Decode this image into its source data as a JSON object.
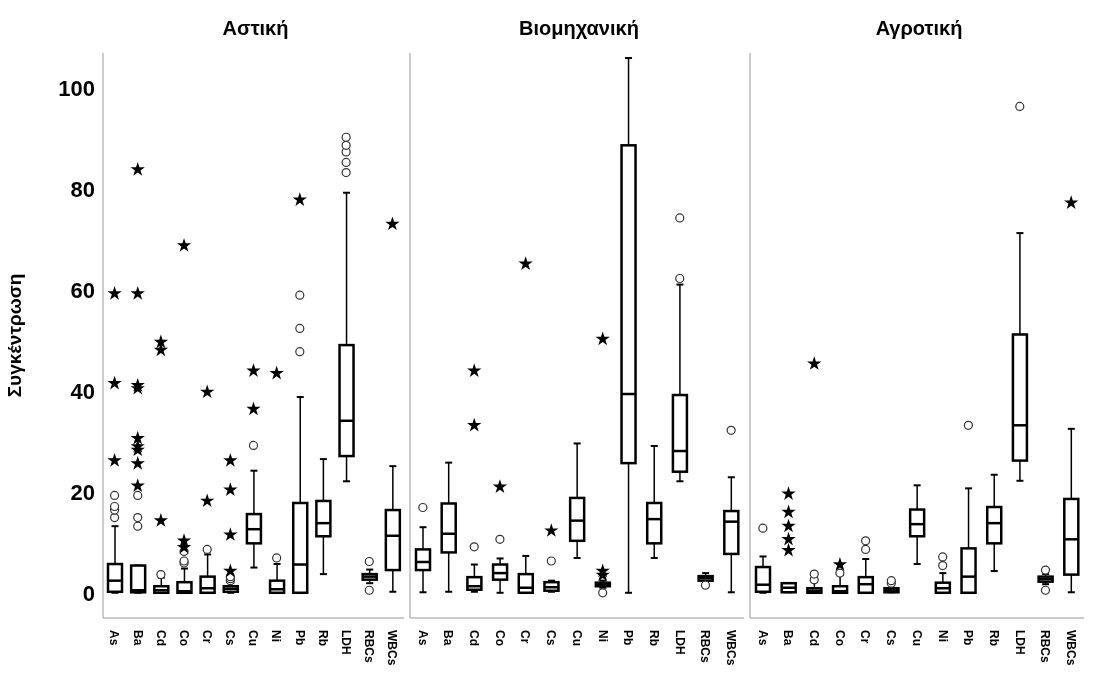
{
  "chart_data": [
    {
      "type": "box",
      "title": "Αστική",
      "ylabel": "Συγκέντρωση",
      "categories": [
        "As",
        "Ba",
        "Cd",
        "Co",
        "Cr",
        "Cs",
        "Cu",
        "Ni",
        "Pb",
        "Rb",
        "LDH",
        "RBCs",
        "WBCs"
      ],
      "ylim": [
        -5,
        107
      ],
      "yticks": [
        0,
        20,
        40,
        60,
        80,
        100
      ],
      "grid": false,
      "legend": false,
      "boxes": [
        {
          "low": 0,
          "q1": 0.2,
          "median": 2.4,
          "q3": 5.7,
          "high": 13.2,
          "outliers": [
            14.9,
            16.4,
            17.1,
            19.3
          ]
        },
        {
          "low": 0,
          "q1": 0.1,
          "median": 0.5,
          "q3": 5.4,
          "high": 5.4,
          "outliers": [
            13.2,
            14.9,
            19.3
          ]
        },
        {
          "low": 0,
          "q1": 0,
          "median": 0.5,
          "q3": 1.3,
          "high": 3.0,
          "outliers": [
            3.6
          ]
        },
        {
          "low": 0,
          "q1": 0,
          "median": 0.3,
          "q3": 2.1,
          "high": 4.8,
          "outliers": [
            5.9,
            6.3,
            8.2
          ]
        },
        {
          "low": 0,
          "q1": 0,
          "median": 0.9,
          "q3": 3.2,
          "high": 7.6,
          "outliers": [
            8.6
          ]
        },
        {
          "low": 0,
          "q1": 0.2,
          "median": 0.8,
          "q3": 1.3,
          "high": 2.0,
          "outliers": [
            2.4,
            2.8,
            3.2
          ]
        },
        {
          "low": 5.0,
          "q1": 9.8,
          "median": 12.6,
          "q3": 15.6,
          "high": 24.2,
          "outliers": [
            29.2
          ]
        },
        {
          "low": 0,
          "q1": 0,
          "median": 0.7,
          "q3": 2.4,
          "high": 5.7,
          "outliers": [
            6.9
          ]
        },
        {
          "low": 0,
          "q1": 0,
          "median": 5.6,
          "q3": 17.8,
          "high": 38.8,
          "outliers": [
            47.8,
            52.4,
            59.0
          ]
        },
        {
          "low": 3.7,
          "q1": 11.2,
          "median": 13.8,
          "q3": 18.2,
          "high": 26.5
        },
        {
          "low": 22.1,
          "q1": 27.1,
          "median": 34.1,
          "q3": 49.1,
          "high": 79.3,
          "outliers": [
            83.3,
            85.3,
            87.4,
            88.7,
            90.3
          ]
        },
        {
          "low": 1.9,
          "q1": 2.6,
          "median": 3.2,
          "q3": 3.7,
          "high": 4.6,
          "outliers": [
            0.5,
            6.2
          ]
        },
        {
          "low": 0.2,
          "q1": 4.5,
          "median": 11.3,
          "q3": 16.4,
          "high": 25.1
        }
      ],
      "series": [
        {
          "type": "scatter",
          "marker": "star",
          "color": "#000000",
          "x": [
            "As",
            "As",
            "As",
            "Ba",
            "Ba",
            "Ba",
            "Ba",
            "Ba",
            "Ba",
            "Ba",
            "Ba",
            "Ba",
            "Cd",
            "Cd",
            "Cd",
            "Co",
            "Co",
            "Co",
            "Cr",
            "Cr",
            "Cs",
            "Cs",
            "Cs",
            "Cs",
            "Cu",
            "Cu",
            "Ni",
            "Pb",
            "WBCs"
          ],
          "values": [
            26.2,
            41.5,
            59.3,
            21.2,
            25.6,
            28.3,
            29.0,
            30.6,
            40.5,
            41.1,
            59.3,
            83.9,
            14.3,
            48.1,
            49.7,
            9.0,
            10.3,
            68.8,
            18.2,
            39.8,
            4.3,
            11.5,
            20.4,
            26.2,
            36.4,
            44.0,
            43.5,
            77.9,
            73.1
          ]
        }
      ]
    },
    {
      "type": "box",
      "title": "Βιομηχανική",
      "categories": [
        "As",
        "Ba",
        "Cd",
        "Co",
        "Cr",
        "Cs",
        "Cu",
        "Ni",
        "Pb",
        "Rb",
        "LDH",
        "RBCs",
        "WBCs"
      ],
      "ylim": [
        -5,
        107
      ],
      "yticks": [
        0,
        20,
        40,
        60,
        80,
        100
      ],
      "tick_labels": "x",
      "grid": false,
      "legend": false,
      "boxes": [
        {
          "low": 0.1,
          "q1": 4.5,
          "median": 6.1,
          "q3": 8.6,
          "high": 13.0,
          "outliers": [
            16.9
          ]
        },
        {
          "low": 0.2,
          "q1": 8.0,
          "median": 11.7,
          "q3": 17.7,
          "high": 25.8
        },
        {
          "low": 0.2,
          "q1": 0.6,
          "median": 1.3,
          "q3": 3.1,
          "high": 5.6,
          "outliers": [
            9.1
          ]
        },
        {
          "low": 0,
          "q1": 2.6,
          "median": 3.9,
          "q3": 5.6,
          "high": 6.8,
          "outliers": [
            10.6
          ]
        },
        {
          "low": 0,
          "q1": 0,
          "median": 1.0,
          "q3": 3.7,
          "high": 7.3
        },
        {
          "low": 0.2,
          "q1": 0.4,
          "median": 1.1,
          "q3": 2.1,
          "high": 2.4,
          "outliers": [
            6.3
          ]
        },
        {
          "low": 6.9,
          "q1": 10.3,
          "median": 14.3,
          "q3": 18.8,
          "high": 29.6
        },
        {
          "low": 1.0,
          "q1": 1.3,
          "median": 1.6,
          "q3": 2.0,
          "high": 2.4,
          "outliers": [
            0
          ]
        },
        {
          "low": 0,
          "q1": 25.7,
          "median": 39.4,
          "q3": 88.7,
          "high": 106
        },
        {
          "low": 6.9,
          "q1": 9.8,
          "median": 14.6,
          "q3": 17.8,
          "high": 29.1
        },
        {
          "low": 22.1,
          "q1": 24.0,
          "median": 28.1,
          "q3": 39.2,
          "high": 61.1,
          "outliers": [
            62.3,
            74.3
          ]
        },
        {
          "low": 1.9,
          "q1": 2.4,
          "median": 2.9,
          "q3": 3.3,
          "high": 3.9,
          "outliers": [
            1.5
          ]
        },
        {
          "low": 0.1,
          "q1": 7.7,
          "median": 14.1,
          "q3": 16.2,
          "high": 22.9,
          "outliers": [
            32.2
          ]
        }
      ],
      "series": [
        {
          "type": "scatter",
          "marker": "star",
          "color": "#000000",
          "x": [
            "Cd",
            "Cd",
            "Co",
            "Cr",
            "Cs",
            "Ni",
            "Ni",
            "Ni"
          ],
          "values": [
            33.2,
            44.0,
            21.0,
            65.2,
            12.3,
            3.5,
            4.3,
            50.3
          ]
        }
      ]
    },
    {
      "type": "box",
      "title": "Αγροτική",
      "categories": [
        "As",
        "Ba",
        "Cd",
        "Co",
        "Cr",
        "Cs",
        "Cu",
        "Ni",
        "Pb",
        "Rb",
        "LDH",
        "RBCs",
        "WBCs"
      ],
      "ylim": [
        -5,
        107
      ],
      "yticks": [
        0,
        20,
        40,
        60,
        80,
        100
      ],
      "tick_labels": "x",
      "grid": false,
      "legend": false,
      "boxes": [
        {
          "low": 0,
          "q1": 0.2,
          "median": 1.6,
          "q3": 5.1,
          "high": 7.2,
          "outliers": [
            12.8
          ]
        },
        {
          "low": 0.1,
          "q1": 0.1,
          "median": 1.0,
          "q3": 1.9,
          "high": 1.9
        },
        {
          "low": 0,
          "q1": 0,
          "median": 0.4,
          "q3": 0.9,
          "high": 2.1,
          "outliers": [
            2.6,
            3.7
          ]
        },
        {
          "low": 0,
          "q1": 0,
          "median": 0.3,
          "q3": 1.3,
          "high": 3.5,
          "outliers": [
            3.9
          ]
        },
        {
          "low": 0,
          "q1": 0,
          "median": 1.7,
          "q3": 3.1,
          "high": 6.7,
          "outliers": [
            8.6,
            10.3
          ]
        },
        {
          "low": 0.1,
          "q1": 0.1,
          "median": 0.5,
          "q3": 0.9,
          "high": 1.5,
          "outliers": [
            1.9,
            2.4
          ]
        },
        {
          "low": 5.7,
          "q1": 11.2,
          "median": 13.6,
          "q3": 16.5,
          "high": 21.3
        },
        {
          "low": 0,
          "q1": 0,
          "median": 0.9,
          "q3": 2.0,
          "high": 3.9,
          "outliers": [
            5.4,
            7.1
          ]
        },
        {
          "low": 0,
          "q1": 0,
          "median": 3.2,
          "q3": 8.8,
          "high": 20.7,
          "outliers": [
            33.2
          ]
        },
        {
          "low": 4.3,
          "q1": 9.8,
          "median": 13.8,
          "q3": 17.0,
          "high": 23.4
        },
        {
          "low": 22.2,
          "q1": 26.2,
          "median": 33.2,
          "q3": 51.2,
          "high": 71.3,
          "outliers": [
            96.4
          ]
        },
        {
          "low": 1.7,
          "q1": 2.2,
          "median": 2.7,
          "q3": 3.2,
          "high": 3.7,
          "outliers": [
            0.5,
            4.5
          ]
        },
        {
          "low": 0.1,
          "q1": 3.6,
          "median": 10.6,
          "q3": 18.6,
          "high": 32.5
        }
      ],
      "series": [
        {
          "type": "scatter",
          "marker": "star",
          "color": "#000000",
          "x": [
            "Ba",
            "Ba",
            "Ba",
            "Ba",
            "Ba",
            "Cd",
            "Co",
            "WBCs"
          ],
          "values": [
            8.4,
            10.6,
            13.2,
            16.0,
            19.6,
            45.4,
            5.6,
            77.3
          ]
        }
      ]
    }
  ]
}
